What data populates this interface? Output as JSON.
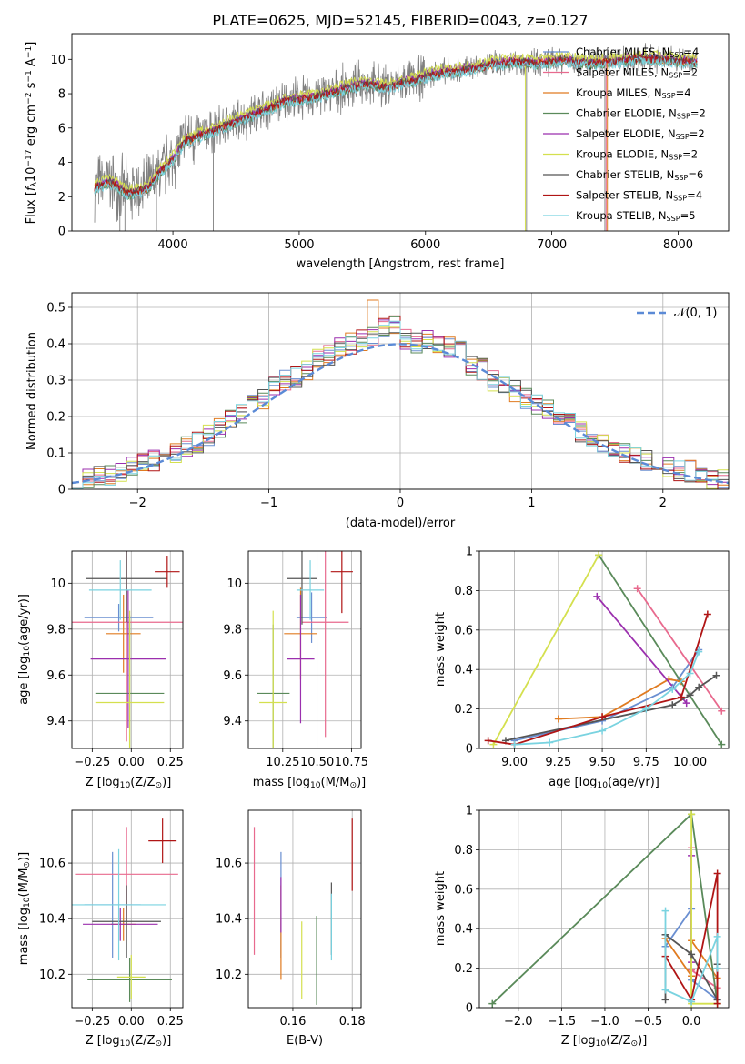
{
  "title": "PLATE=0625, MJD=52145, FIBERID=0043, z=0.127",
  "colors": {
    "Chabrier MILES": "#6a8fd1",
    "Salpeter MILES": "#e86a8e",
    "Kroupa MILES": "#e07b20",
    "Chabrier ELODIE": "#5a8a5a",
    "Salpeter ELODIE": "#9b2fae",
    "Kroupa ELODIE": "#d4e04e",
    "Chabrier STELIB": "#555555",
    "Salpeter STELIB": "#b01515",
    "Kroupa STELIB": "#7ad3e0",
    "data": "#808080",
    "normal": "#5b8ad6"
  },
  "chart_data": [
    {
      "id": "spectrum",
      "type": "line",
      "xlabel": "wavelength [Angstrom, rest frame]",
      "ylabel_parts": [
        "Flux [",
        "f",
        "λ",
        "10",
        "−17",
        " erg cm",
        "−2",
        " s",
        "−1",
        " A",
        "−1",
        "]"
      ],
      "xlim": [
        3200,
        8400
      ],
      "ylim": [
        0,
        11.5
      ],
      "xticks": [
        4000,
        5000,
        6000,
        7000,
        8000
      ],
      "yticks": [
        0,
        2,
        4,
        6,
        8,
        10
      ],
      "grid": false,
      "legend": "upper-right",
      "legend_entries": [
        {
          "name": "Chabrier MILES",
          "n": "4"
        },
        {
          "name": "Salpeter MILES",
          "n": "2"
        },
        {
          "name": "Kroupa MILES",
          "n": "4"
        },
        {
          "name": "Chabrier ELODIE",
          "n": "2"
        },
        {
          "name": "Salpeter ELODIE",
          "n": "2"
        },
        {
          "name": "Kroupa ELODIE",
          "n": "2"
        },
        {
          "name": "Chabrier STELIB",
          "n": "6"
        },
        {
          "name": "Salpeter STELIB",
          "n": "4"
        },
        {
          "name": "Kroupa STELIB",
          "n": "5"
        }
      ],
      "trend": [
        [
          3380,
          2.6
        ],
        [
          3500,
          2.9
        ],
        [
          3650,
          2.2
        ],
        [
          3800,
          2.5
        ],
        [
          3900,
          3.5
        ],
        [
          4000,
          4.2
        ],
        [
          4100,
          5.3
        ],
        [
          4300,
          5.8
        ],
        [
          4500,
          6.4
        ],
        [
          4700,
          7.0
        ],
        [
          4900,
          7.6
        ],
        [
          5100,
          7.8
        ],
        [
          5300,
          8.2
        ],
        [
          5500,
          8.6
        ],
        [
          5700,
          8.4
        ],
        [
          5900,
          8.8
        ],
        [
          6100,
          9.2
        ],
        [
          6300,
          9.4
        ],
        [
          6500,
          9.7
        ],
        [
          6700,
          9.9
        ],
        [
          6900,
          9.8
        ],
        [
          7100,
          10.0
        ],
        [
          7300,
          9.8
        ],
        [
          7500,
          9.9
        ],
        [
          7700,
          10.1
        ],
        [
          7900,
          10.0
        ],
        [
          8100,
          9.9
        ]
      ],
      "drops": [
        [
          3580,
          0
        ],
        [
          3620,
          0
        ],
        [
          3870,
          0
        ],
        [
          4320,
          0
        ],
        [
          5940,
          7.6
        ],
        [
          6800,
          0
        ],
        [
          7420,
          0
        ]
      ]
    },
    {
      "id": "residuals",
      "type": "step-histogram",
      "xlabel": "(data-model)/error",
      "ylabel": "Normed distribution",
      "xlim": [
        -2.5,
        2.5
      ],
      "ylim": [
        0,
        0.54
      ],
      "xticks": [
        -2,
        -1,
        0,
        1,
        2
      ],
      "yticks": [
        0.0,
        0.1,
        0.2,
        0.3,
        0.4,
        0.5
      ],
      "grid": true,
      "bin_width": 0.1,
      "base_curve": [
        0.03,
        0.03,
        0.04,
        0.04,
        0.05,
        0.06,
        0.07,
        0.08,
        0.09,
        0.1,
        0.12,
        0.13,
        0.15,
        0.17,
        0.19,
        0.21,
        0.23,
        0.25,
        0.28,
        0.3,
        0.31,
        0.33,
        0.36,
        0.37,
        0.39,
        0.4,
        0.41,
        0.42,
        0.44,
        0.45,
        0.41,
        0.4,
        0.41,
        0.4,
        0.39,
        0.38,
        0.34,
        0.33,
        0.3,
        0.28,
        0.27,
        0.25,
        0.23,
        0.22,
        0.2,
        0.18,
        0.16,
        0.14,
        0.12,
        0.11,
        0.1,
        0.09,
        0.08,
        0.07,
        0.06,
        0.05,
        0.05,
        0.04,
        0.03,
        0.03
      ],
      "normal_label": "𝒩(0, 1)"
    },
    {
      "id": "z-age",
      "type": "errorbar",
      "xlabel_parts": [
        "Z [log",
        "10",
        "(Z/Z",
        "⊙",
        ")]"
      ],
      "ylabel_parts": [
        "age  [log",
        "10",
        "(age/yr)]"
      ],
      "xlim": [
        -0.38,
        0.33
      ],
      "ylim": [
        9.28,
        10.14
      ],
      "xticks": [
        -0.25,
        0.0,
        0.25
      ],
      "xticklabels": [
        "−0.25",
        "0.00",
        "0.25"
      ],
      "yticks": [
        9.4,
        9.6,
        9.8,
        10.0
      ],
      "grid": true,
      "points": [
        {
          "s": "Chabrier MILES",
          "x": -0.08,
          "y": 9.85,
          "xe": 0.22,
          "ye": 0.06
        },
        {
          "s": "Salpeter MILES",
          "x": -0.03,
          "y": 9.83,
          "xe": 0.7,
          "ye": 0.52
        },
        {
          "s": "Kroupa MILES",
          "x": -0.05,
          "y": 9.78,
          "xe": 0.11,
          "ye": 0.17
        },
        {
          "s": "Chabrier ELODIE",
          "x": -0.01,
          "y": 9.52,
          "xe": 0.22,
          "ye": 0.34
        },
        {
          "s": "Salpeter ELODIE",
          "x": -0.02,
          "y": 9.67,
          "xe": 0.24,
          "ye": 0.3
        },
        {
          "s": "Kroupa ELODIE",
          "x": -0.01,
          "y": 9.48,
          "xe": 0.22,
          "ye": 0.4
        },
        {
          "s": "Chabrier STELIB",
          "x": -0.03,
          "y": 10.02,
          "xe": 0.26,
          "ye": 0.19
        },
        {
          "s": "Salpeter STELIB",
          "x": 0.23,
          "y": 10.05,
          "xe": 0.08,
          "ye": 0.07
        },
        {
          "s": "Kroupa STELIB",
          "x": -0.07,
          "y": 9.97,
          "xe": 0.2,
          "ye": 0.13
        }
      ]
    },
    {
      "id": "mass-age",
      "type": "errorbar",
      "xlabel_parts": [
        "mass [log",
        "10",
        "(M/M",
        "⊙",
        ")]"
      ],
      "ylim": [
        9.28,
        10.14
      ],
      "xlim": [
        10.0,
        10.82
      ],
      "xticks": [
        10.25,
        10.5,
        10.75
      ],
      "xticklabels": [
        "10.25",
        "10.50",
        "10.75"
      ],
      "yticks": [
        9.4,
        9.6,
        9.8,
        10.0
      ],
      "grid": true,
      "points": [
        {
          "s": "Chabrier MILES",
          "x": 10.46,
          "y": 9.85,
          "xe": 0.11,
          "ye": 0.11
        },
        {
          "s": "Salpeter MILES",
          "x": 10.56,
          "y": 9.83,
          "xe": 0.17,
          "ye": 0.5
        },
        {
          "s": "Kroupa MILES",
          "x": 10.38,
          "y": 9.78,
          "xe": 0.12,
          "ye": 0.2
        },
        {
          "s": "Chabrier ELODIE",
          "x": 10.18,
          "y": 9.52,
          "xe": 0.12,
          "ye": 0.3
        },
        {
          "s": "Salpeter ELODIE",
          "x": 10.38,
          "y": 9.67,
          "xe": 0.1,
          "ye": 0.28
        },
        {
          "s": "Kroupa ELODIE",
          "x": 10.18,
          "y": 9.48,
          "xe": 0.1,
          "ye": 0.4
        },
        {
          "s": "Chabrier STELIB",
          "x": 10.39,
          "y": 10.02,
          "xe": 0.11,
          "ye": 0.2
        },
        {
          "s": "Salpeter STELIB",
          "x": 10.68,
          "y": 10.05,
          "xe": 0.08,
          "ye": 0.18
        },
        {
          "s": "Kroupa STELIB",
          "x": 10.45,
          "y": 9.97,
          "xe": 0.1,
          "ye": 0.13
        }
      ]
    },
    {
      "id": "age-weight",
      "type": "line",
      "xlabel_parts": [
        "age  [log",
        "10",
        "(age/yr)]"
      ],
      "ylabel": "mass weight",
      "xlim": [
        8.8,
        10.22
      ],
      "ylim": [
        0,
        1.0
      ],
      "xticks": [
        9.0,
        9.25,
        9.5,
        9.75,
        10.0
      ],
      "xticklabels": [
        "9.00",
        "9.25",
        "9.50",
        "9.75",
        "10.00"
      ],
      "yticks": [
        0.0,
        0.2,
        0.4,
        0.6,
        0.8,
        1.0
      ],
      "grid": true,
      "series": [
        {
          "s": "Chabrier MILES",
          "x": [
            9.0,
            9.5,
            9.9,
            10.05
          ],
          "y": [
            0.04,
            0.14,
            0.31,
            0.5
          ]
        },
        {
          "s": "Salpeter MILES",
          "x": [
            9.7,
            10.18
          ],
          "y": [
            0.81,
            0.19
          ]
        },
        {
          "s": "Kroupa MILES",
          "x": [
            9.25,
            9.5,
            9.88,
            9.95
          ],
          "y": [
            0.15,
            0.16,
            0.35,
            0.34
          ]
        },
        {
          "s": "Chabrier ELODIE",
          "x": [
            9.48,
            10.18
          ],
          "y": [
            0.98,
            0.02
          ]
        },
        {
          "s": "Salpeter ELODIE",
          "x": [
            9.47,
            9.98
          ],
          "y": [
            0.77,
            0.23
          ]
        },
        {
          "s": "Kroupa ELODIE",
          "x": [
            8.88,
            9.48
          ],
          "y": [
            0.02,
            0.98
          ]
        },
        {
          "s": "Chabrier STELIB",
          "x": [
            8.95,
            9.9,
            10.0,
            10.05,
            10.15
          ],
          "y": [
            0.04,
            0.22,
            0.27,
            0.31,
            0.37
          ]
        },
        {
          "s": "Salpeter STELIB",
          "x": [
            8.85,
            9.0,
            9.5,
            9.95,
            10.1
          ],
          "y": [
            0.04,
            0.02,
            0.16,
            0.26,
            0.68
          ]
        },
        {
          "s": "Kroupa STELIB",
          "x": [
            9.0,
            9.2,
            9.5,
            9.75,
            9.9,
            10.0,
            10.05
          ],
          "y": [
            0.02,
            0.03,
            0.09,
            0.2,
            0.3,
            0.38,
            0.49
          ]
        }
      ]
    },
    {
      "id": "z-mass",
      "type": "errorbar",
      "xlabel_parts": [
        "Z [log",
        "10",
        "(Z/Z",
        "⊙",
        ")]"
      ],
      "ylabel_parts": [
        "mass [log",
        "10",
        "(M/M",
        "⊙",
        ")]"
      ],
      "xlim": [
        -0.38,
        0.33
      ],
      "ylim": [
        10.08,
        10.79
      ],
      "xticks": [
        -0.25,
        0.0,
        0.25
      ],
      "xticklabels": [
        "−0.25",
        "0.00",
        "0.25"
      ],
      "yticks": [
        10.2,
        10.4,
        10.6
      ],
      "grid": true,
      "points": [
        {
          "s": "Chabrier MILES",
          "x": -0.12,
          "y": 10.45,
          "xe": 0.18,
          "ye": 0.19
        },
        {
          "s": "Salpeter MILES",
          "x": -0.03,
          "y": 10.56,
          "xe": 0.33,
          "ye": 0.17
        },
        {
          "s": "Kroupa MILES",
          "x": -0.05,
          "y": 10.38,
          "xe": 0.08,
          "ye": 0.06
        },
        {
          "s": "Chabrier ELODIE",
          "x": -0.01,
          "y": 10.18,
          "xe": 0.27,
          "ye": 0.08
        },
        {
          "s": "Salpeter ELODIE",
          "x": -0.07,
          "y": 10.38,
          "xe": 0.24,
          "ye": 0.06
        },
        {
          "s": "Kroupa ELODIE",
          "x": 0.0,
          "y": 10.19,
          "xe": 0.09,
          "ye": 0.08
        },
        {
          "s": "Chabrier STELIB",
          "x": -0.03,
          "y": 10.39,
          "xe": 0.22,
          "ye": 0.13
        },
        {
          "s": "Salpeter STELIB",
          "x": 0.2,
          "y": 10.68,
          "xe": 0.09,
          "ye": 0.08
        },
        {
          "s": "Kroupa STELIB",
          "x": -0.08,
          "y": 10.45,
          "xe": 0.3,
          "ye": 0.2
        }
      ]
    },
    {
      "id": "ebv-mass",
      "type": "errorbar",
      "xlabel": "E(B-V)",
      "xlim": [
        0.145,
        0.183
      ],
      "ylim": [
        10.08,
        10.79
      ],
      "xticks": [
        0.16,
        0.18
      ],
      "xticklabels": [
        "0.16",
        "0.18"
      ],
      "yticks": [
        10.2,
        10.4,
        10.6
      ],
      "grid": true,
      "points": [
        {
          "s": "Chabrier MILES",
          "x": 0.156,
          "y": 10.45,
          "xe": 0,
          "ye": 0.19
        },
        {
          "s": "Salpeter MILES",
          "x": 0.147,
          "y": 10.5,
          "xe": 0,
          "ye": 0.23
        },
        {
          "s": "Kroupa MILES",
          "x": 0.156,
          "y": 10.35,
          "xe": 0,
          "ye": 0.17
        },
        {
          "s": "Chabrier ELODIE",
          "x": 0.168,
          "y": 10.25,
          "xe": 0,
          "ye": 0.16
        },
        {
          "s": "Salpeter ELODIE",
          "x": 0.156,
          "y": 10.45,
          "xe": 0,
          "ye": 0.1
        },
        {
          "s": "Kroupa ELODIE",
          "x": 0.163,
          "y": 10.25,
          "xe": 0,
          "ye": 0.14
        },
        {
          "s": "Chabrier STELIB",
          "x": 0.173,
          "y": 10.4,
          "xe": 0,
          "ye": 0.13
        },
        {
          "s": "Salpeter STELIB",
          "x": 0.18,
          "y": 10.63,
          "xe": 0,
          "ye": 0.13
        },
        {
          "s": "Kroupa STELIB",
          "x": 0.173,
          "y": 10.37,
          "xe": 0,
          "ye": 0.12
        }
      ]
    },
    {
      "id": "z-weight",
      "type": "line",
      "xlabel_parts": [
        "Z [log",
        "10",
        "(Z/Z",
        "⊙",
        ")]"
      ],
      "ylabel": "mass weight",
      "xlim": [
        -2.45,
        0.43
      ],
      "ylim": [
        0,
        1.0
      ],
      "xticks": [
        -2.0,
        -1.5,
        -1.0,
        -0.5,
        0.0
      ],
      "xticklabels": [
        "−2.0",
        "−1.5",
        "−1.0",
        "−0.5",
        "0.0"
      ],
      "yticks": [
        0.0,
        0.2,
        0.4,
        0.6,
        0.8,
        1.0
      ],
      "grid": true,
      "series": [
        {
          "s": "Chabrier MILES",
          "x": [
            -0.3,
            0.0,
            0.0,
            0.3
          ],
          "y": [
            0.31,
            0.5,
            0.14,
            0.04
          ]
        },
        {
          "s": "Salpeter MILES",
          "x": [
            0.0,
            0.0,
            0.3
          ],
          "y": [
            0.81,
            0.19,
            0.1
          ]
        },
        {
          "s": "Kroupa MILES",
          "x": [
            -0.3,
            0.0,
            0.0,
            0.3
          ],
          "y": [
            0.35,
            0.16,
            0.34,
            0.15
          ]
        },
        {
          "s": "Chabrier ELODIE",
          "x": [
            -2.3,
            0.0,
            0.3
          ],
          "y": [
            0.02,
            0.98,
            0.02
          ]
        },
        {
          "s": "Salpeter ELODIE",
          "x": [
            0.0,
            0.0
          ],
          "y": [
            0.77,
            0.23
          ]
        },
        {
          "s": "Kroupa ELODIE",
          "x": [
            0.0,
            0.0,
            0.3
          ],
          "y": [
            0.98,
            0.02,
            0.02
          ]
        },
        {
          "s": "Chabrier STELIB",
          "x": [
            -0.3,
            -0.3,
            0.0,
            0.3,
            0.3
          ],
          "y": [
            0.04,
            0.37,
            0.27,
            0.04,
            0.22
          ]
        },
        {
          "s": "Salpeter STELIB",
          "x": [
            -0.3,
            0.0,
            0.3,
            0.3
          ],
          "y": [
            0.26,
            0.04,
            0.68,
            0.02
          ]
        },
        {
          "s": "Kroupa STELIB",
          "x": [
            -0.3,
            -0.3,
            0.0,
            0.3,
            0.3
          ],
          "y": [
            0.49,
            0.09,
            0.03,
            0.36,
            0.2
          ]
        }
      ]
    }
  ]
}
